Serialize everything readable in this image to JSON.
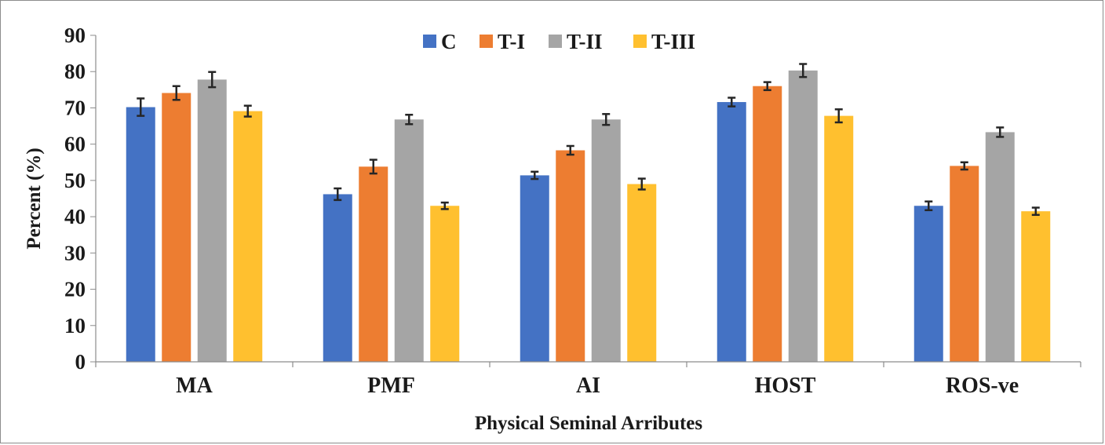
{
  "chart_data": {
    "type": "bar",
    "title": "",
    "xlabel": "Physical Seminal Arributes",
    "ylabel": "Percent (%)",
    "ylim": [
      0,
      90
    ],
    "yticks": [
      "0",
      "10",
      "20",
      "30",
      "40",
      "50",
      "60",
      "70",
      "80",
      "90"
    ],
    "categories": [
      "MA",
      "PMF",
      "AI",
      "HOST",
      "ROS-ve"
    ],
    "series": [
      {
        "name": "C",
        "color": "#4472C4",
        "values": [
          70.2,
          46.2,
          51.4,
          71.6,
          43.0
        ],
        "errors": [
          2.4,
          1.6,
          1.0,
          1.2,
          1.2
        ]
      },
      {
        "name": "T-I",
        "color": "#ED7D31",
        "values": [
          74.1,
          53.8,
          58.3,
          76.0,
          54.0
        ],
        "errors": [
          1.9,
          1.9,
          1.2,
          1.1,
          1.0
        ]
      },
      {
        "name": "T-II",
        "color": "#A5A5A5",
        "values": [
          77.8,
          66.8,
          66.8,
          80.3,
          63.3
        ],
        "errors": [
          2.1,
          1.3,
          1.5,
          1.8,
          1.3
        ]
      },
      {
        "name": "T-III",
        "color": "#FFC02F",
        "values": [
          69.1,
          43.0,
          49.0,
          67.8,
          41.5
        ],
        "errors": [
          1.5,
          0.9,
          1.5,
          1.8,
          1.0
        ]
      }
    ],
    "error_bars": true,
    "grid": false,
    "legend_position": "top-center"
  }
}
